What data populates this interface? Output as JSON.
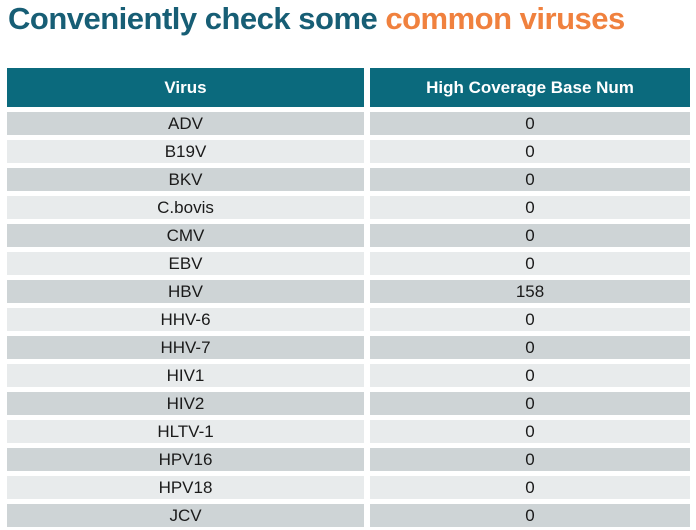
{
  "title": {
    "prefix": "Conveniently check some ",
    "highlight": "common viruses"
  },
  "colors": {
    "title_teal": "#175e75",
    "title_orange": "#f0813e",
    "header_bg": "#0b6a7d",
    "row_dark": "#ced4d6",
    "row_light": "#e8ebec"
  },
  "table": {
    "columns": [
      "Virus",
      "High Coverage Base Num"
    ],
    "rows": [
      {
        "virus": "ADV",
        "value": "0"
      },
      {
        "virus": "B19V",
        "value": "0"
      },
      {
        "virus": "BKV",
        "value": "0"
      },
      {
        "virus": "C.bovis",
        "value": "0"
      },
      {
        "virus": "CMV",
        "value": "0"
      },
      {
        "virus": "EBV",
        "value": "0"
      },
      {
        "virus": "HBV",
        "value": "158"
      },
      {
        "virus": "HHV-6",
        "value": "0"
      },
      {
        "virus": "HHV-7",
        "value": "0"
      },
      {
        "virus": "HIV1",
        "value": "0"
      },
      {
        "virus": "HIV2",
        "value": "0"
      },
      {
        "virus": "HLTV-1",
        "value": "0"
      },
      {
        "virus": "HPV16",
        "value": "0"
      },
      {
        "virus": "HPV18",
        "value": "0"
      },
      {
        "virus": "JCV",
        "value": "0"
      }
    ]
  },
  "chart_data": {
    "type": "table",
    "title": "Conveniently check some common viruses",
    "categories": [
      "ADV",
      "B19V",
      "BKV",
      "C.bovis",
      "CMV",
      "EBV",
      "HBV",
      "HHV-6",
      "HHV-7",
      "HIV1",
      "HIV2",
      "HLTV-1",
      "HPV16",
      "HPV18",
      "JCV"
    ],
    "series": [
      {
        "name": "High Coverage Base Num",
        "values": [
          0,
          0,
          0,
          0,
          0,
          0,
          158,
          0,
          0,
          0,
          0,
          0,
          0,
          0,
          0
        ]
      }
    ]
  }
}
